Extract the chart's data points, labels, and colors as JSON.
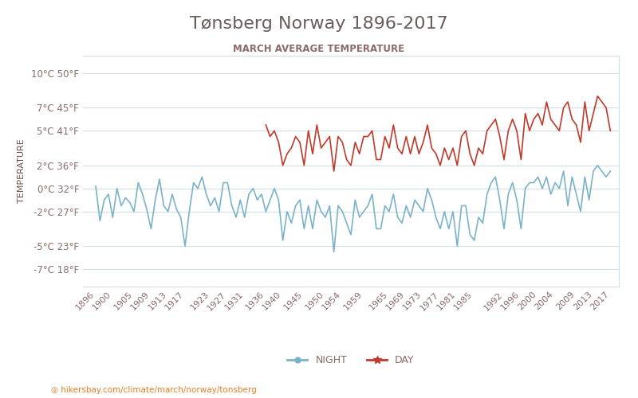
{
  "title": "Tønsberg Norway 1896-2017",
  "subtitle": "MARCH AVERAGE TEMPERATURE",
  "ylabel": "TEMPERATURE",
  "xlabel_url": "hikersbay.com/climate/march/norway/tonsberg",
  "yticks_c": [
    -7,
    -5,
    -2,
    0,
    2,
    5,
    7,
    10
  ],
  "yticks_f": [
    18,
    23,
    27,
    32,
    36,
    41,
    45,
    50
  ],
  "xtick_labels": [
    "1896",
    "1900",
    "1905",
    "1909",
    "1913",
    "1917",
    "1923",
    "1927",
    "1931",
    "1936",
    "1940",
    "1945",
    "1950",
    "1954",
    "1959",
    "1965",
    "1969",
    "1973",
    "1977",
    "1981",
    "1985",
    "1992",
    "1996",
    "2000",
    "2004",
    "2009",
    "2013",
    "2017"
  ],
  "title_color": "#6b5b5b",
  "subtitle_color": "#8b6b6b",
  "axis_label_color": "#6b4f4f",
  "tick_color": "#8b6b6b",
  "night_color": "#7ab3c8",
  "day_color": "#c0392b",
  "grid_color": "#d0dce8",
  "bg_color": "#ffffff",
  "legend_night": "NIGHT",
  "legend_day": "DAY",
  "night_data": {
    "years": [
      1896,
      1897,
      1898,
      1899,
      1900,
      1901,
      1902,
      1903,
      1904,
      1905,
      1906,
      1907,
      1908,
      1909,
      1910,
      1911,
      1912,
      1913,
      1914,
      1915,
      1916,
      1917,
      1918,
      1919,
      1920,
      1921,
      1922,
      1923,
      1924,
      1925,
      1926,
      1927,
      1928,
      1929,
      1930,
      1931,
      1932,
      1933,
      1934,
      1935,
      1936,
      1937,
      1938,
      1939,
      1940,
      1941,
      1942,
      1943,
      1944,
      1945,
      1946,
      1947,
      1948,
      1949,
      1950,
      1951,
      1952,
      1953,
      1954,
      1955,
      1956,
      1957,
      1958,
      1959,
      1960,
      1961,
      1962,
      1963,
      1964,
      1965,
      1966,
      1967,
      1968,
      1969,
      1970,
      1971,
      1972,
      1973,
      1974,
      1975,
      1976,
      1977,
      1978,
      1979,
      1980,
      1981,
      1982,
      1983,
      1984,
      1985,
      1986,
      1987,
      1988,
      1989,
      1990,
      1991,
      1992,
      1993,
      1994,
      1995,
      1996,
      1997,
      1998,
      1999,
      2000,
      2001,
      2002,
      2003,
      2004,
      2005,
      2006,
      2007,
      2008,
      2009,
      2010,
      2011,
      2012,
      2013,
      2014,
      2015,
      2016,
      2017
    ],
    "temps": [
      0.2,
      -2.8,
      -1.0,
      -0.5,
      -2.5,
      0.0,
      -1.5,
      -0.8,
      -1.2,
      -2.0,
      0.5,
      -0.5,
      -1.8,
      -3.5,
      -1.0,
      0.8,
      -1.5,
      -2.0,
      -0.5,
      -1.8,
      -2.5,
      -5.0,
      -2.0,
      0.5,
      0.0,
      1.0,
      -0.5,
      -1.5,
      -0.8,
      -2.0,
      0.5,
      0.5,
      -1.5,
      -2.5,
      -1.0,
      -2.5,
      -0.5,
      0.0,
      -1.0,
      -0.5,
      -2.0,
      -1.0,
      0.0,
      -1.0,
      -4.5,
      -2.0,
      -3.0,
      -1.5,
      -1.0,
      -3.5,
      -1.5,
      -3.5,
      -1.0,
      -2.0,
      -2.5,
      -1.5,
      -5.5,
      -1.5,
      -2.0,
      -3.0,
      -4.0,
      -1.0,
      -2.5,
      -2.0,
      -1.5,
      -0.5,
      -3.5,
      -3.5,
      -1.5,
      -2.0,
      -0.5,
      -2.5,
      -3.0,
      -1.5,
      -2.5,
      -1.0,
      -1.5,
      -2.0,
      0.0,
      -1.0,
      -2.5,
      -3.5,
      -2.0,
      -3.5,
      -2.0,
      -5.0,
      -1.5,
      -1.5,
      -4.0,
      -4.5,
      -2.5,
      -3.0,
      -0.5,
      0.5,
      1.0,
      -1.0,
      -3.5,
      -0.5,
      0.5,
      -1.0,
      -3.5,
      0.0,
      0.5,
      0.5,
      1.0,
      0.0,
      1.0,
      -0.5,
      0.5,
      0.0,
      1.5,
      -1.5,
      1.0,
      -0.5,
      -2.0,
      1.0,
      -1.0,
      1.5,
      2.0,
      1.5,
      1.0,
      1.5
    ]
  },
  "day_data": {
    "years": [
      1936,
      1937,
      1938,
      1939,
      1940,
      1941,
      1942,
      1943,
      1944,
      1945,
      1946,
      1947,
      1948,
      1949,
      1950,
      1951,
      1952,
      1953,
      1954,
      1955,
      1956,
      1957,
      1958,
      1959,
      1960,
      1961,
      1962,
      1963,
      1964,
      1965,
      1966,
      1967,
      1968,
      1969,
      1970,
      1971,
      1972,
      1973,
      1974,
      1975,
      1976,
      1977,
      1978,
      1979,
      1980,
      1981,
      1982,
      1983,
      1984,
      1985,
      1986,
      1987,
      1988,
      1989,
      1990,
      1991,
      1992,
      1993,
      1994,
      1995,
      1996,
      1997,
      1998,
      1999,
      2000,
      2001,
      2002,
      2003,
      2004,
      2005,
      2006,
      2007,
      2008,
      2009,
      2010,
      2011,
      2012,
      2013,
      2014,
      2015,
      2016,
      2017
    ],
    "temps": [
      5.5,
      4.5,
      5.0,
      4.0,
      2.0,
      3.0,
      3.5,
      4.5,
      4.0,
      2.0,
      5.0,
      3.0,
      5.5,
      3.5,
      4.0,
      4.5,
      1.5,
      4.5,
      4.0,
      2.5,
      2.0,
      4.0,
      3.0,
      4.5,
      4.5,
      5.0,
      2.5,
      2.5,
      4.5,
      3.5,
      5.5,
      3.5,
      3.0,
      4.5,
      3.0,
      4.5,
      3.0,
      4.0,
      5.5,
      3.5,
      3.0,
      2.0,
      3.5,
      2.5,
      3.5,
      2.0,
      4.5,
      5.0,
      3.0,
      2.0,
      3.5,
      3.0,
      5.0,
      5.5,
      6.0,
      4.5,
      2.5,
      5.0,
      6.0,
      5.0,
      2.5,
      6.5,
      5.0,
      6.0,
      6.5,
      5.5,
      7.5,
      6.0,
      5.5,
      5.0,
      7.0,
      7.5,
      6.0,
      5.5,
      4.0,
      7.5,
      5.0,
      6.5,
      8.0,
      7.5,
      7.0,
      5.0
    ]
  }
}
